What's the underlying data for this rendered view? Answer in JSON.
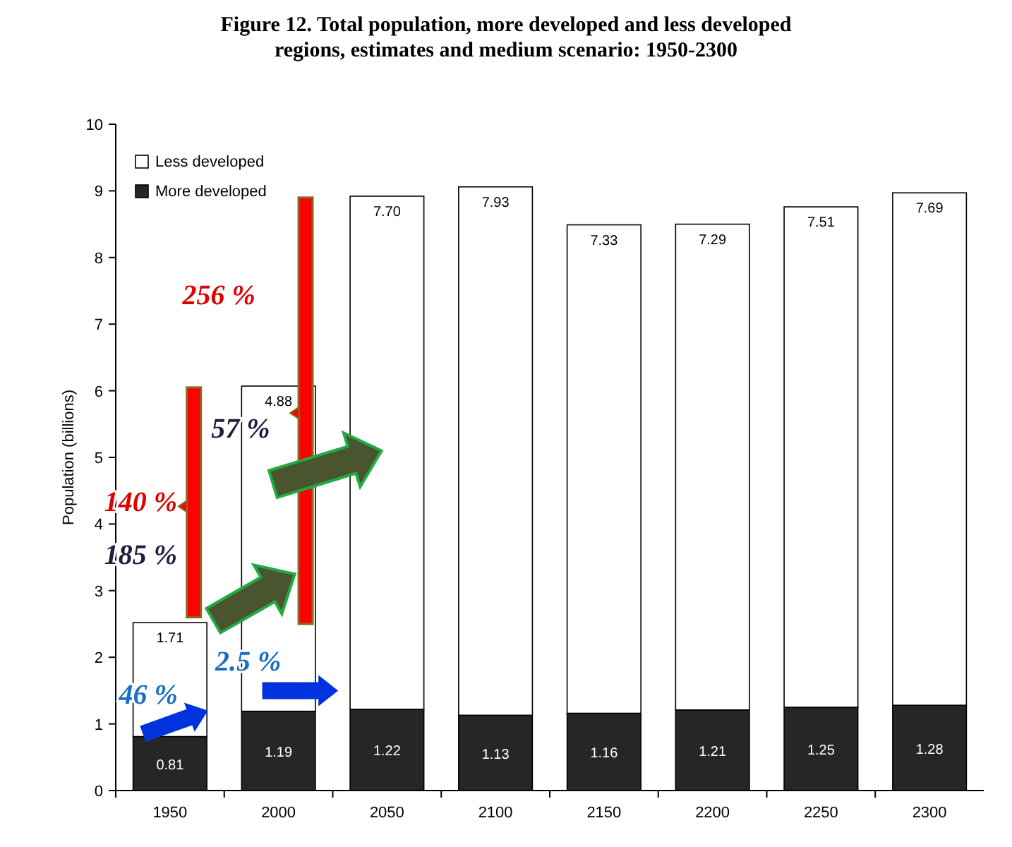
{
  "chart_data": {
    "type": "bar",
    "stacked": true,
    "title": "Figure 12. Total population, more developed and less developed regions, estimates and medium scenario: 1950-2300",
    "ylabel": "Population (billions)",
    "categories": [
      "1950",
      "2000",
      "2050",
      "2100",
      "2150",
      "2200",
      "2250",
      "2300"
    ],
    "series": [
      {
        "name": "More developed",
        "color": "#262626",
        "values": [
          0.81,
          1.19,
          1.22,
          1.13,
          1.16,
          1.21,
          1.25,
          1.28
        ],
        "value_labels": [
          "0.81",
          "1.19",
          "1.22",
          "1.13",
          "1.16",
          "1.21",
          "1.25",
          "1.28"
        ]
      },
      {
        "name": "Less developed",
        "color": "#ffffff",
        "values": [
          1.71,
          4.88,
          7.7,
          7.93,
          7.33,
          7.29,
          7.51,
          7.69
        ],
        "value_labels": [
          "1.71",
          "4.88",
          "7.70",
          "7.93",
          "7.33",
          "7.29",
          "7.51",
          "7.69"
        ]
      }
    ],
    "ylim": [
      0,
      10
    ],
    "yticks": [
      0,
      1,
      2,
      3,
      4,
      5,
      6,
      7,
      8,
      9,
      10
    ],
    "legend": "top left",
    "grid": false,
    "annotations": [
      "256 %",
      "140 %",
      "57 %",
      "185 %",
      "46 %",
      "2.5 %"
    ]
  }
}
